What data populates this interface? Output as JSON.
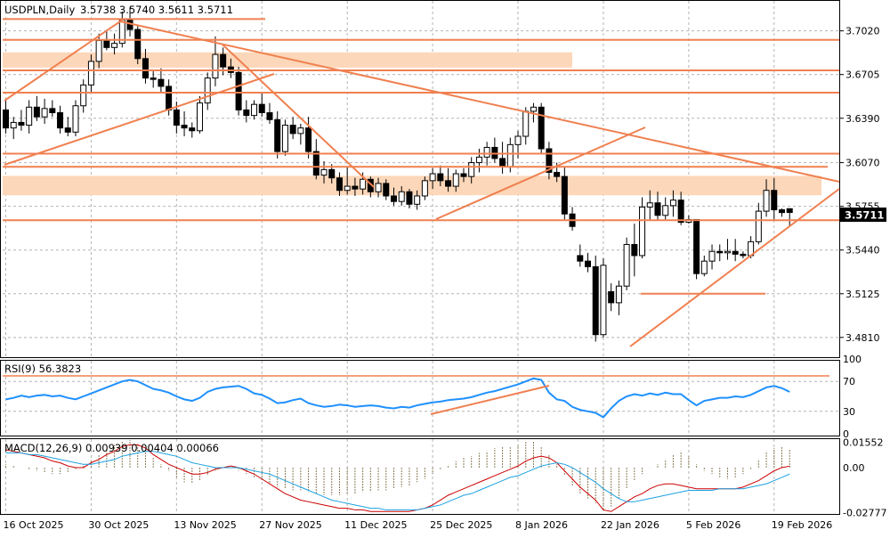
{
  "header": {
    "symbol_timeframe": "USDPLN,Daily",
    "ohlc": "3.5738 3.5740 3.5611 3.5711"
  },
  "rsi_panel": {
    "label": "RSI(9) 56.3823"
  },
  "macd_panel": {
    "label": "MACD(12,26,9) 0.00939 0.00404 0.00066"
  },
  "colors": {
    "background": "#ffffff",
    "border": "#000000",
    "grid": "#b4b4b4",
    "annotation": "#f08050",
    "zone_fill": "#fcd7b9",
    "candle": "#000000",
    "rsi_line": "#1e90ff",
    "macd_hist": "#8b7d5a",
    "macd_line": "#cc0000",
    "signal_line": "#1ba1e2",
    "price_tag_bg": "#000000",
    "price_tag_text": "#ffffff"
  },
  "chart_data": [
    {
      "type": "candlestick",
      "name": "price",
      "ylim": [
        3.4674,
        3.7236
      ],
      "y_tick_labels": [
        "3.7020",
        "3.6705",
        "3.6390",
        "3.6070",
        "3.5755",
        "3.5440",
        "3.5125",
        "3.4810"
      ],
      "current_price": "3.5711",
      "x_tick_labels": [
        "16 Oct 2025",
        "30 Oct 2025",
        "13 Nov 2025",
        "27 Nov 2025",
        "11 Dec 2025",
        "25 Dec 2025",
        "8 Jan 2026",
        "22 Jan 2026",
        "5 Feb 2026",
        "19 Feb 2026"
      ],
      "ohlc": [
        [
          3.645,
          3.652,
          3.628,
          3.632
        ],
        [
          3.632,
          3.64,
          3.624,
          3.636
        ],
        [
          3.636,
          3.645,
          3.63,
          3.634
        ],
        [
          3.634,
          3.652,
          3.628,
          3.647
        ],
        [
          3.647,
          3.655,
          3.637,
          3.64
        ],
        [
          3.64,
          3.653,
          3.635,
          3.646
        ],
        [
          3.646,
          3.652,
          3.64,
          3.643
        ],
        [
          3.643,
          3.648,
          3.628,
          3.632
        ],
        [
          3.632,
          3.64,
          3.626,
          3.629
        ],
        [
          3.629,
          3.652,
          3.626,
          3.648
        ],
        [
          3.648,
          3.667,
          3.643,
          3.663
        ],
        [
          3.663,
          3.685,
          3.657,
          3.68
        ],
        [
          3.68,
          3.7,
          3.675,
          3.695
        ],
        [
          3.695,
          3.702,
          3.688,
          3.69
        ],
        [
          3.69,
          3.7,
          3.685,
          3.693
        ],
        [
          3.693,
          3.716,
          3.69,
          3.71
        ],
        [
          3.71,
          3.719,
          3.698,
          3.703
        ],
        [
          3.703,
          3.706,
          3.678,
          3.682
        ],
        [
          3.682,
          3.689,
          3.664,
          3.668
        ],
        [
          3.668,
          3.673,
          3.661,
          3.667
        ],
        [
          3.667,
          3.675,
          3.658,
          3.662
        ],
        [
          3.662,
          3.667,
          3.641,
          3.645
        ],
        [
          3.645,
          3.651,
          3.628,
          3.634
        ],
        [
          3.634,
          3.644,
          3.626,
          3.632
        ],
        [
          3.632,
          3.636,
          3.625,
          3.63
        ],
        [
          3.63,
          3.655,
          3.628,
          3.65
        ],
        [
          3.65,
          3.672,
          3.645,
          3.668
        ],
        [
          3.668,
          3.698,
          3.662,
          3.685
        ],
        [
          3.685,
          3.69,
          3.67,
          3.676
        ],
        [
          3.676,
          3.682,
          3.668,
          3.672
        ],
        [
          3.672,
          3.676,
          3.641,
          3.645
        ],
        [
          3.645,
          3.652,
          3.636,
          3.641
        ],
        [
          3.641,
          3.652,
          3.638,
          3.649
        ],
        [
          3.649,
          3.657,
          3.64,
          3.643
        ],
        [
          3.643,
          3.65,
          3.635,
          3.638
        ],
        [
          3.638,
          3.644,
          3.61,
          3.615
        ],
        [
          3.615,
          3.638,
          3.612,
          3.634
        ],
        [
          3.634,
          3.64,
          3.624,
          3.628
        ],
        [
          3.628,
          3.635,
          3.62,
          3.632
        ],
        [
          3.632,
          3.64,
          3.61,
          3.615
        ],
        [
          3.615,
          3.624,
          3.595,
          3.598
        ],
        [
          3.598,
          3.608,
          3.592,
          3.602
        ],
        [
          3.602,
          3.606,
          3.592,
          3.596
        ],
        [
          3.596,
          3.6,
          3.583,
          3.587
        ],
        [
          3.587,
          3.604,
          3.584,
          3.59
        ],
        [
          3.59,
          3.596,
          3.583,
          3.588
        ],
        [
          3.588,
          3.6,
          3.584,
          3.595
        ],
        [
          3.595,
          3.597,
          3.582,
          3.586
        ],
        [
          3.586,
          3.596,
          3.582,
          3.592
        ],
        [
          3.592,
          3.595,
          3.58,
          3.583
        ],
        [
          3.583,
          3.589,
          3.576,
          3.579
        ],
        [
          3.579,
          3.59,
          3.576,
          3.586
        ],
        [
          3.586,
          3.588,
          3.574,
          3.577
        ],
        [
          3.577,
          3.587,
          3.573,
          3.583
        ],
        [
          3.583,
          3.597,
          3.58,
          3.594
        ],
        [
          3.594,
          3.603,
          3.588,
          3.599
        ],
        [
          3.599,
          3.605,
          3.59,
          3.594
        ],
        [
          3.594,
          3.603,
          3.586,
          3.59
        ],
        [
          3.59,
          3.602,
          3.586,
          3.599
        ],
        [
          3.599,
          3.603,
          3.593,
          3.597
        ],
        [
          3.597,
          3.611,
          3.592,
          3.607
        ],
        [
          3.607,
          3.617,
          3.6,
          3.611
        ],
        [
          3.611,
          3.622,
          3.605,
          3.618
        ],
        [
          3.618,
          3.625,
          3.607,
          3.61
        ],
        [
          3.61,
          3.622,
          3.599,
          3.604
        ],
        [
          3.604,
          3.625,
          3.6,
          3.62
        ],
        [
          3.62,
          3.63,
          3.61,
          3.626
        ],
        [
          3.626,
          3.647,
          3.62,
          3.644
        ],
        [
          3.644,
          3.65,
          3.636,
          3.647
        ],
        [
          3.647,
          3.65,
          3.613,
          3.617
        ],
        [
          3.617,
          3.622,
          3.595,
          3.6
        ],
        [
          3.6,
          3.607,
          3.593,
          3.597
        ],
        [
          3.597,
          3.604,
          3.565,
          3.57
        ],
        [
          3.57,
          3.575,
          3.558,
          3.561
        ],
        [
          3.54,
          3.548,
          3.532,
          3.536
        ],
        [
          3.536,
          3.542,
          3.528,
          3.532
        ],
        [
          3.532,
          3.54,
          3.478,
          3.483
        ],
        [
          3.483,
          3.538,
          3.481,
          3.533
        ],
        [
          3.514,
          3.52,
          3.5,
          3.506
        ],
        [
          3.506,
          3.522,
          3.497,
          3.518
        ],
        [
          3.518,
          3.553,
          3.515,
          3.548
        ],
        [
          3.548,
          3.563,
          3.525,
          3.54
        ],
        [
          3.54,
          3.582,
          3.538,
          3.575
        ],
        [
          3.575,
          3.587,
          3.566,
          3.578
        ],
        [
          3.578,
          3.586,
          3.565,
          3.569
        ],
        [
          3.569,
          3.582,
          3.565,
          3.576
        ],
        [
          3.576,
          3.587,
          3.568,
          3.58
        ],
        [
          3.58,
          3.586,
          3.562,
          3.564
        ],
        [
          3.564,
          3.569,
          3.563,
          3.566
        ],
        [
          3.566,
          3.566,
          3.523,
          3.527
        ],
        [
          3.527,
          3.54,
          3.525,
          3.536
        ],
        [
          3.536,
          3.548,
          3.53,
          3.543
        ],
        [
          3.543,
          3.548,
          3.536,
          3.542
        ],
        [
          3.542,
          3.552,
          3.537,
          3.543
        ],
        [
          3.543,
          3.552,
          3.536,
          3.541
        ],
        [
          3.541,
          3.543,
          3.538,
          3.54
        ],
        [
          3.54,
          3.554,
          3.538,
          3.55
        ],
        [
          3.55,
          3.578,
          3.548,
          3.572
        ],
        [
          3.572,
          3.595,
          3.568,
          3.587
        ],
        [
          3.587,
          3.596,
          3.566,
          3.573
        ],
        [
          3.573,
          3.574,
          3.568,
          3.571
        ],
        [
          3.5738,
          3.574,
          3.5611,
          3.5711
        ]
      ]
    },
    {
      "type": "line",
      "name": "RSI",
      "ylim": [
        0,
        100
      ],
      "y_tick_labels": [
        "100",
        "70",
        "30",
        "0"
      ],
      "values": [
        46,
        48,
        51,
        49,
        51,
        52,
        50,
        51,
        48,
        46,
        50,
        54,
        58,
        62,
        66,
        70,
        72,
        70,
        65,
        60,
        58,
        55,
        50,
        46,
        44,
        48,
        56,
        60,
        62,
        63,
        64,
        60,
        54,
        52,
        47,
        41,
        42,
        45,
        47,
        41,
        38,
        36,
        37,
        39,
        38,
        36,
        37,
        38,
        37,
        35,
        34,
        36,
        35,
        38,
        40,
        42,
        43,
        45,
        46,
        47,
        49,
        52,
        55,
        57,
        60,
        63,
        66,
        70,
        74,
        72,
        55,
        46,
        44,
        36,
        32,
        30,
        28,
        22,
        34,
        44,
        50,
        53,
        51,
        54,
        52,
        55,
        53,
        53,
        45,
        38,
        44,
        46,
        48,
        48,
        50,
        49,
        52,
        57,
        62,
        64,
        61,
        56
      ]
    },
    {
      "type": "bar_line",
      "name": "MACD",
      "ylim": [
        -0.0285,
        0.0175
      ],
      "y_tick_labels": [
        "0.01552",
        "0.00",
        "-0.02777"
      ],
      "histogram": [
        0.002,
        0.001,
        0.0,
        -0.001,
        -0.002,
        -0.003,
        -0.004,
        -0.004,
        -0.003,
        -0.001,
        0.002,
        0.005,
        0.008,
        0.011,
        0.014,
        0.016,
        0.017,
        0.015,
        0.011,
        0.006,
        0.002,
        -0.002,
        -0.006,
        -0.009,
        -0.01,
        -0.008,
        -0.005,
        -0.002,
        0.0,
        0.0,
        -0.002,
        -0.004,
        -0.006,
        -0.008,
        -0.01,
        -0.012,
        -0.013,
        -0.014,
        -0.014,
        -0.015,
        -0.016,
        -0.017,
        -0.017,
        -0.017,
        -0.016,
        -0.016,
        -0.015,
        -0.015,
        -0.014,
        -0.014,
        -0.013,
        -0.012,
        -0.011,
        -0.009,
        -0.007,
        -0.004,
        -0.001,
        0.001,
        0.004,
        0.006,
        0.007,
        0.009,
        0.01,
        0.012,
        0.013,
        0.013,
        0.014,
        0.016,
        0.016,
        0.013,
        0.008,
        0.002,
        -0.005,
        -0.011,
        -0.016,
        -0.019,
        -0.022,
        -0.026,
        -0.024,
        -0.019,
        -0.013,
        -0.008,
        -0.004,
        0.0,
        0.002,
        0.005,
        0.008,
        0.01,
        0.007,
        0.002,
        -0.002,
        -0.004,
        -0.006,
        -0.007,
        -0.006,
        -0.004,
        -0.001,
        0.005,
        0.01,
        0.012,
        0.013,
        0.011
      ],
      "macd": [
        0.011,
        0.01,
        0.009,
        0.008,
        0.007,
        0.006,
        0.004,
        0.003,
        0.001,
        0.0,
        0.0,
        0.003,
        0.005,
        0.008,
        0.01,
        0.013,
        0.014,
        0.014,
        0.012,
        0.008,
        0.005,
        0.002,
        0.0,
        -0.002,
        -0.004,
        -0.004,
        -0.003,
        -0.001,
        0.0,
        0.001,
        0.0,
        -0.002,
        -0.004,
        -0.007,
        -0.01,
        -0.013,
        -0.016,
        -0.018,
        -0.02,
        -0.021,
        -0.022,
        -0.023,
        -0.024,
        -0.025,
        -0.025,
        -0.026,
        -0.026,
        -0.027,
        -0.027,
        -0.027,
        -0.027,
        -0.027,
        -0.027,
        -0.026,
        -0.025,
        -0.023,
        -0.02,
        -0.017,
        -0.015,
        -0.013,
        -0.011,
        -0.009,
        -0.007,
        -0.005,
        -0.003,
        -0.001,
        0.001,
        0.004,
        0.006,
        0.007,
        0.006,
        0.003,
        -0.002,
        -0.007,
        -0.012,
        -0.016,
        -0.02,
        -0.026,
        -0.027,
        -0.024,
        -0.021,
        -0.018,
        -0.016,
        -0.013,
        -0.011,
        -0.01,
        -0.01,
        -0.011,
        -0.012,
        -0.013,
        -0.013,
        -0.013,
        -0.013,
        -0.013,
        -0.013,
        -0.012,
        -0.01,
        -0.008,
        -0.005,
        -0.002,
        0.0,
        0.0009
      ],
      "signal": [
        0.009,
        0.009,
        0.009,
        0.008,
        0.008,
        0.007,
        0.006,
        0.005,
        0.004,
        0.003,
        0.002,
        0.002,
        0.003,
        0.004,
        0.005,
        0.007,
        0.008,
        0.009,
        0.01,
        0.01,
        0.009,
        0.008,
        0.007,
        0.005,
        0.003,
        0.002,
        0.001,
        0.0,
        0.0,
        0.0,
        0.0,
        -0.001,
        -0.002,
        -0.003,
        -0.004,
        -0.006,
        -0.008,
        -0.01,
        -0.012,
        -0.014,
        -0.016,
        -0.018,
        -0.02,
        -0.021,
        -0.022,
        -0.023,
        -0.024,
        -0.025,
        -0.025,
        -0.026,
        -0.026,
        -0.026,
        -0.026,
        -0.026,
        -0.025,
        -0.024,
        -0.023,
        -0.021,
        -0.019,
        -0.017,
        -0.016,
        -0.014,
        -0.012,
        -0.01,
        -0.008,
        -0.006,
        -0.005,
        -0.003,
        -0.001,
        0.001,
        0.002,
        0.003,
        0.002,
        0.0,
        -0.003,
        -0.006,
        -0.009,
        -0.013,
        -0.016,
        -0.019,
        -0.021,
        -0.021,
        -0.02,
        -0.019,
        -0.018,
        -0.017,
        -0.016,
        -0.015,
        -0.014,
        -0.014,
        -0.014,
        -0.014,
        -0.013,
        -0.013,
        -0.013,
        -0.013,
        -0.012,
        -0.011,
        -0.01,
        -0.008,
        -0.006,
        -0.004
      ]
    }
  ]
}
